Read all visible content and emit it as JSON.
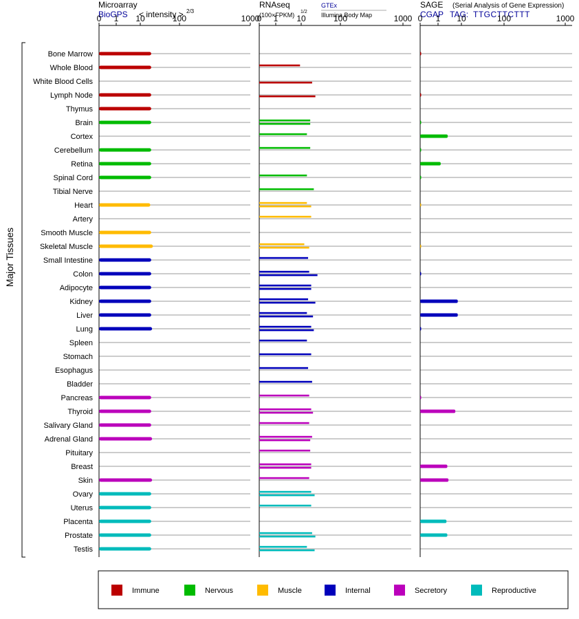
{
  "panels": [
    {
      "title": "Microarray",
      "source": "BioGPS",
      "measure": "< intensity >",
      "measure_exp": "2/3"
    },
    {
      "title": "RNAseq",
      "measure": "(100×FPKM)",
      "measure_exp": "1/2",
      "source1": "GTEx",
      "source2": "Illumina Body Map"
    },
    {
      "title": "SAGE",
      "subtitle": "(Serial Analysis of Gene Expression)",
      "source": "CGAP",
      "tag_label": "TAG:",
      "tag": "TTGCTTCTTT"
    }
  ],
  "y_axis_label": "Major Tissues",
  "colors": {
    "Immune": "#bb0000",
    "Nervous": "#00bb00",
    "Muscle": "#ffbb00",
    "Internal": "#0000bb",
    "Secretory": "#bb00bb",
    "Reproductive": "#00bbbb"
  },
  "legend": [
    "Immune",
    "Nervous",
    "Muscle",
    "Internal",
    "Secretory",
    "Reproductive"
  ],
  "chart_data": {
    "type": "bar",
    "orientation": "horizontal",
    "x_scale": "power",
    "x_ticks": [
      "0",
      "1",
      "10",
      "100",
      "1000"
    ],
    "x_tick_values": [
      0,
      1,
      10,
      100,
      1000
    ],
    "x_range": [
      0,
      1000
    ],
    "tissues": [
      {
        "name": "Bone Marrow",
        "group": "Immune",
        "microarray": 19,
        "rnaseq": [],
        "sage": 0.02
      },
      {
        "name": "Whole Blood",
        "group": "Immune",
        "microarray": 19,
        "rnaseq": [
          9
        ],
        "sage": null
      },
      {
        "name": "White Blood Cells",
        "group": "Immune",
        "microarray": null,
        "rnaseq": [
          null,
          19
        ],
        "sage": null
      },
      {
        "name": "Lymph Node",
        "group": "Immune",
        "microarray": 19,
        "rnaseq": [
          null,
          23
        ],
        "sage": 0.02
      },
      {
        "name": "Thymus",
        "group": "Immune",
        "microarray": 19,
        "rnaseq": [],
        "sage": null
      },
      {
        "name": "Brain",
        "group": "Nervous",
        "microarray": 19,
        "rnaseq": [
          17,
          17
        ],
        "sage": 0.01
      },
      {
        "name": "Cortex",
        "group": "Nervous",
        "microarray": null,
        "rnaseq": [
          14
        ],
        "sage": 2.6
      },
      {
        "name": "Cerebellum",
        "group": "Nervous",
        "microarray": 19,
        "rnaseq": [
          17
        ],
        "sage": 0.01
      },
      {
        "name": "Retina",
        "group": "Nervous",
        "microarray": 19,
        "rnaseq": [],
        "sage": 1.3
      },
      {
        "name": "Spinal Cord",
        "group": "Nervous",
        "microarray": 19,
        "rnaseq": [
          14
        ],
        "sage": 0.01
      },
      {
        "name": "Tibial Nerve",
        "group": "Nervous",
        "microarray": null,
        "rnaseq": [
          21
        ],
        "sage": null
      },
      {
        "name": "Heart",
        "group": "Muscle",
        "microarray": 18,
        "rnaseq": [
          14,
          18
        ],
        "sage": 0.005
      },
      {
        "name": "Artery",
        "group": "Muscle",
        "microarray": null,
        "rnaseq": [
          18
        ],
        "sage": null
      },
      {
        "name": "Smooth Muscle",
        "group": "Muscle",
        "microarray": 19,
        "rnaseq": [],
        "sage": null
      },
      {
        "name": "Skeletal Muscle",
        "group": "Muscle",
        "microarray": 21,
        "rnaseq": [
          12,
          16
        ],
        "sage": 0.005
      },
      {
        "name": "Small Intestine",
        "group": "Internal",
        "microarray": 19,
        "rnaseq": [
          15
        ],
        "sage": null
      },
      {
        "name": "Colon",
        "group": "Internal",
        "microarray": 19,
        "rnaseq": [
          16,
          26
        ],
        "sage": 0.02
      },
      {
        "name": "Adipocyte",
        "group": "Internal",
        "microarray": 19,
        "rnaseq": [
          18,
          18
        ],
        "sage": null
      },
      {
        "name": "Kidney",
        "group": "Internal",
        "microarray": 19,
        "rnaseq": [
          15,
          23
        ],
        "sage": 7
      },
      {
        "name": "Liver",
        "group": "Internal",
        "microarray": 19,
        "rnaseq": [
          14,
          20
        ],
        "sage": 7
      },
      {
        "name": "Lung",
        "group": "Internal",
        "microarray": 20,
        "rnaseq": [
          18,
          21
        ],
        "sage": 0.02
      },
      {
        "name": "Spleen",
        "group": "Internal",
        "microarray": null,
        "rnaseq": [
          14
        ],
        "sage": null
      },
      {
        "name": "Stomach",
        "group": "Internal",
        "microarray": null,
        "rnaseq": [
          18
        ],
        "sage": null
      },
      {
        "name": "Esophagus",
        "group": "Internal",
        "microarray": null,
        "rnaseq": [
          15
        ],
        "sage": null
      },
      {
        "name": "Bladder",
        "group": "Internal",
        "microarray": null,
        "rnaseq": [
          19
        ],
        "sage": null
      },
      {
        "name": "Pancreas",
        "group": "Secretory",
        "microarray": 19,
        "rnaseq": [
          16
        ],
        "sage": 0.02
      },
      {
        "name": "Thyroid",
        "group": "Secretory",
        "microarray": 19,
        "rnaseq": [
          18,
          20
        ],
        "sage": 5.5
      },
      {
        "name": "Salivary Gland",
        "group": "Secretory",
        "microarray": 19,
        "rnaseq": [
          16
        ],
        "sage": null
      },
      {
        "name": "Adrenal Gland",
        "group": "Secretory",
        "microarray": 20,
        "rnaseq": [
          19,
          17
        ],
        "sage": null
      },
      {
        "name": "Pituitary",
        "group": "Secretory",
        "microarray": null,
        "rnaseq": [
          17
        ],
        "sage": null
      },
      {
        "name": "Breast",
        "group": "Secretory",
        "microarray": null,
        "rnaseq": [
          18,
          18
        ],
        "sage": 2.5
      },
      {
        "name": "Skin",
        "group": "Secretory",
        "microarray": 20,
        "rnaseq": [
          16
        ],
        "sage": 2.8
      },
      {
        "name": "Ovary",
        "group": "Reproductive",
        "microarray": 19,
        "rnaseq": [
          18,
          22
        ],
        "sage": null
      },
      {
        "name": "Uterus",
        "group": "Reproductive",
        "microarray": 19,
        "rnaseq": [
          18
        ],
        "sage": null
      },
      {
        "name": "Placenta",
        "group": "Reproductive",
        "microarray": 19,
        "rnaseq": [],
        "sage": 2.3
      },
      {
        "name": "Prostate",
        "group": "Reproductive",
        "microarray": 19,
        "rnaseq": [
          19,
          23
        ],
        "sage": 2.5
      },
      {
        "name": "Testis",
        "group": "Reproductive",
        "microarray": 19,
        "rnaseq": [
          14,
          22
        ],
        "sage": null
      }
    ]
  }
}
